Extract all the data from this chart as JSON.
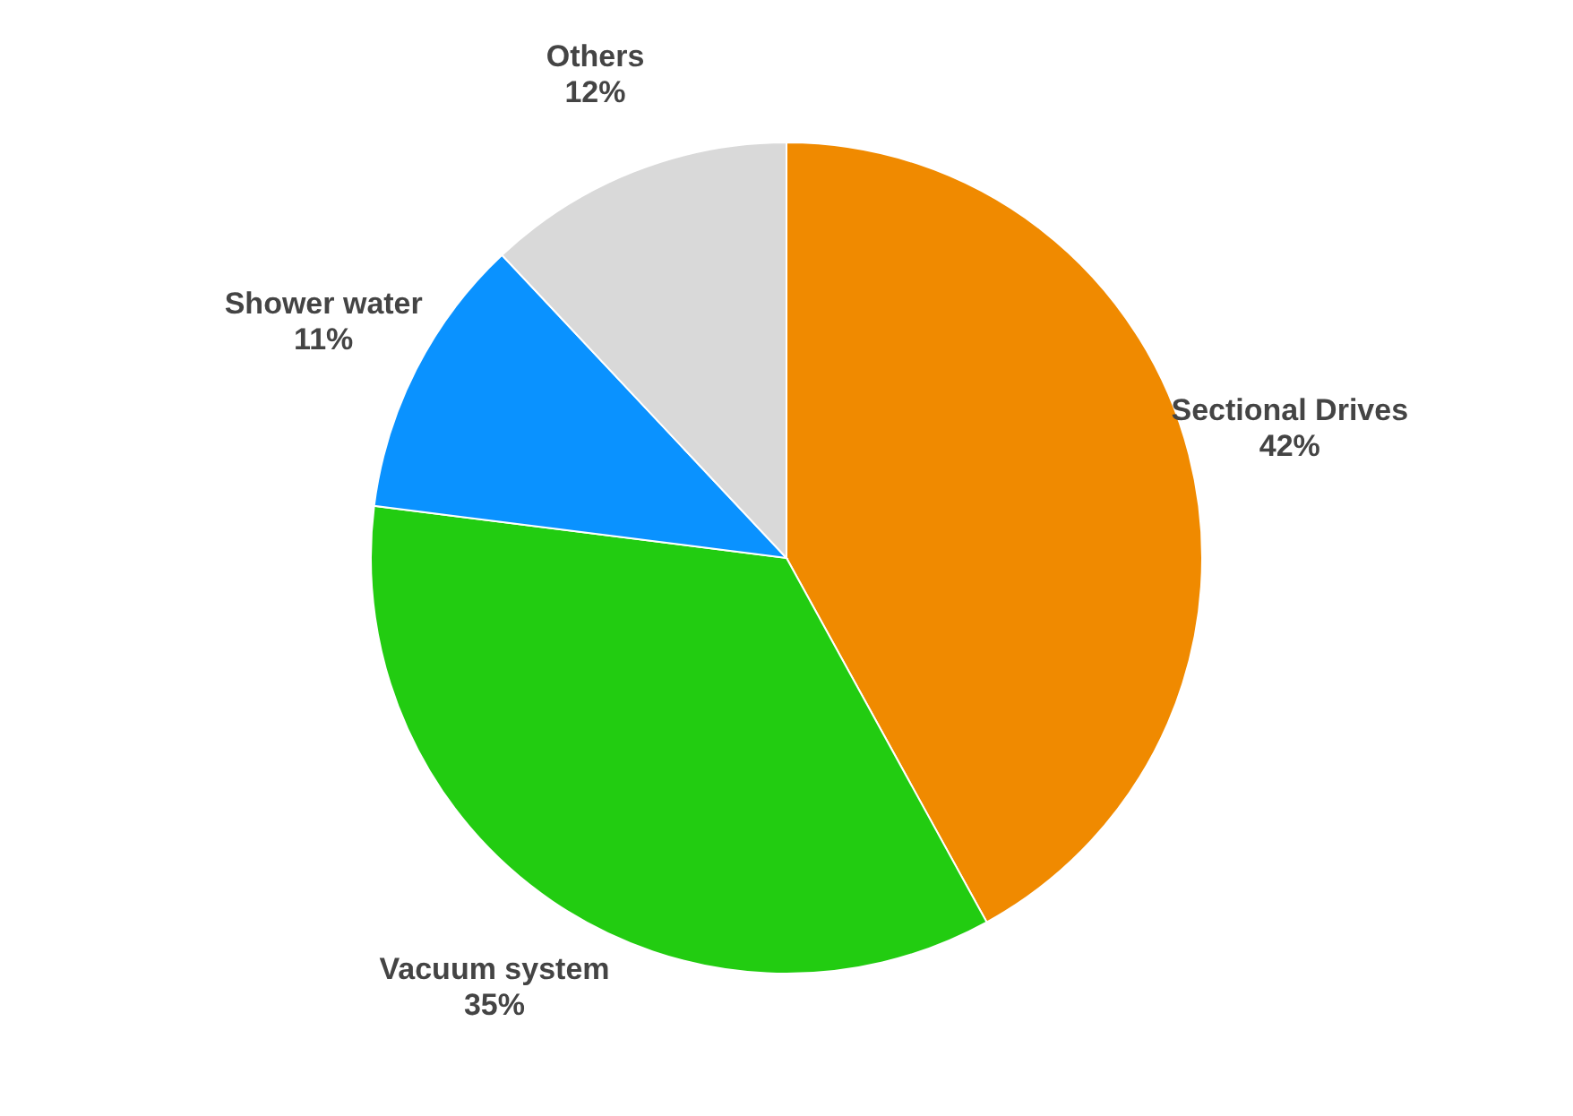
{
  "chart_data": {
    "type": "pie",
    "categories": [
      "Sectional Drives",
      "Vacuum system",
      "Shower water",
      "Others"
    ],
    "values": [
      42,
      35,
      11,
      12
    ],
    "value_labels": [
      "42%",
      "35%",
      "11%",
      "12%"
    ],
    "colors": [
      "#f08a00",
      "#22cc11",
      "#0a92ff",
      "#d9d9d9"
    ]
  }
}
